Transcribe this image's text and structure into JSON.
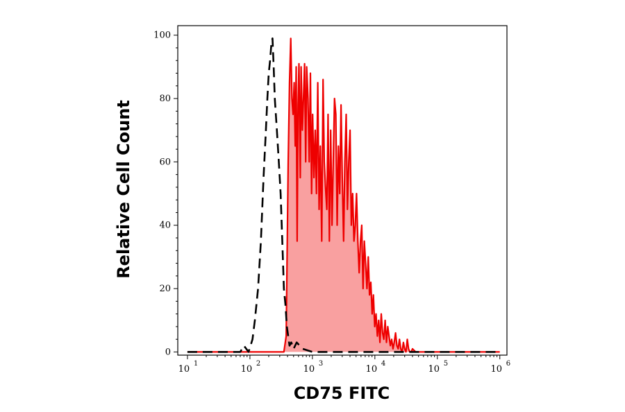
{
  "chart_data": {
    "type": "area",
    "xlabel": "CD75 FITC",
    "ylabel": "Relative Cell Count",
    "x_scale": "log",
    "xlim": [
      7,
      1300000
    ],
    "ylim": [
      -1,
      103
    ],
    "x_ticks": [
      {
        "base": "10",
        "exp": "1"
      },
      {
        "base": "10",
        "exp": "2"
      },
      {
        "base": "10",
        "exp": "3"
      },
      {
        "base": "10",
        "exp": "4"
      },
      {
        "base": "10",
        "exp": "5"
      },
      {
        "base": "10",
        "exp": "6"
      }
    ],
    "y_ticks": [
      "0",
      "20",
      "40",
      "60",
      "80",
      "100"
    ],
    "grid": false,
    "legend": "none",
    "series": [
      {
        "style": "dashed",
        "color": "#000000",
        "fill": false,
        "x": [
          10,
          70,
          80,
          95,
          110,
          120,
          135,
          150,
          165,
          180,
          190,
          200,
          210,
          220,
          230,
          240,
          250,
          270,
          290,
          310,
          330,
          350,
          370,
          390,
          410,
          430,
          460,
          500,
          560,
          700,
          1000,
          100000,
          1000000
        ],
        "y": [
          0,
          0,
          2,
          0,
          4,
          10,
          20,
          35,
          55,
          70,
          80,
          88,
          92,
          97,
          99,
          90,
          80,
          70,
          60,
          50,
          35,
          20,
          15,
          8,
          5,
          2,
          3,
          1,
          3,
          1,
          0,
          0,
          0
        ]
      },
      {
        "style": "solid",
        "color": "#ee0000",
        "fill": true,
        "fill_color": "#f9a0a0",
        "x": [
          10,
          350,
          380,
          410,
          430,
          450,
          470,
          490,
          510,
          530,
          550,
          570,
          590,
          610,
          640,
          660,
          690,
          720,
          750,
          780,
          810,
          850,
          890,
          930,
          970,
          1010,
          1060,
          1110,
          1160,
          1220,
          1280,
          1340,
          1410,
          1480,
          1550,
          1620,
          1700,
          1780,
          1870,
          1960,
          2060,
          2160,
          2260,
          2370,
          2490,
          2610,
          2740,
          2870,
          3010,
          3160,
          3310,
          3470,
          3640,
          3820,
          4010,
          4200,
          4410,
          4620,
          4850,
          5090,
          5340,
          5600,
          5880,
          6160,
          6470,
          6780,
          7110,
          7460,
          7830,
          8210,
          8620,
          9040,
          9480,
          9950,
          10440,
          10950,
          11490,
          12050,
          12650,
          13270,
          13920,
          14600,
          15320,
          16070,
          16860,
          17690,
          18560,
          19470,
          20430,
          21430,
          22480,
          23590,
          24750,
          25960,
          27240,
          28580,
          29980,
          31460,
          33000,
          34620,
          36320,
          38110,
          40000,
          45000,
          60000,
          100000,
          1000000
        ],
        "y": [
          0,
          0,
          5,
          60,
          85,
          99,
          80,
          75,
          85,
          65,
          90,
          35,
          78,
          91,
          55,
          90,
          70,
          80,
          91,
          60,
          90,
          80,
          60,
          88,
          50,
          75,
          55,
          70,
          50,
          85,
          45,
          65,
          35,
          86,
          60,
          52,
          45,
          75,
          35,
          70,
          40,
          60,
          80,
          75,
          40,
          65,
          50,
          78,
          55,
          35,
          60,
          75,
          45,
          60,
          70,
          40,
          50,
          35,
          40,
          50,
          35,
          25,
          35,
          40,
          20,
          35,
          28,
          20,
          30,
          18,
          22,
          12,
          18,
          8,
          12,
          5,
          10,
          3,
          12,
          6,
          4,
          10,
          3,
          8,
          5,
          2,
          4,
          1,
          3,
          6,
          2,
          1,
          4,
          1,
          0,
          3,
          1,
          0,
          4,
          1,
          0,
          0,
          1,
          0,
          0,
          0,
          0
        ]
      }
    ]
  }
}
